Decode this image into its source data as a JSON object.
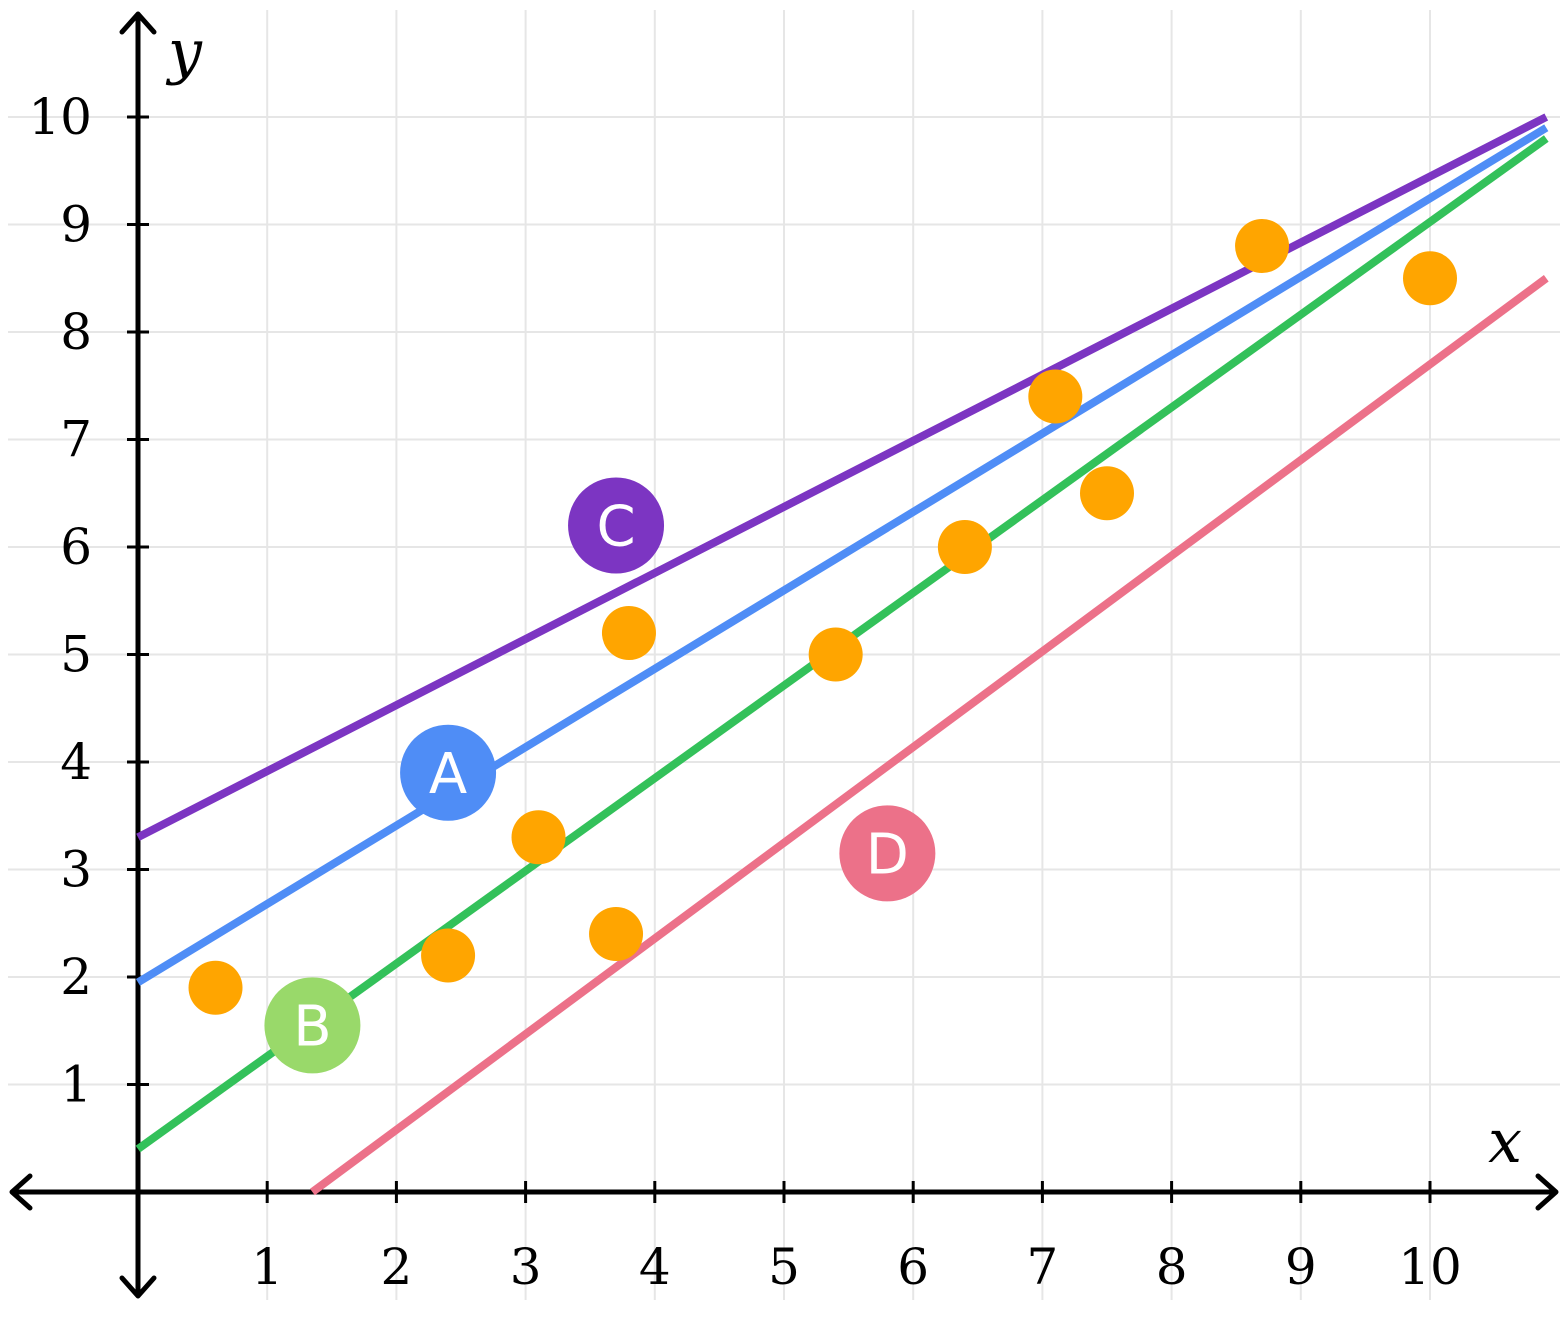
{
  "chart_data": {
    "type": "scatter",
    "title": "",
    "xlabel": "x",
    "ylabel": "y",
    "xlim": [
      -1,
      11
    ],
    "ylim": [
      -1,
      11
    ],
    "grid": true,
    "x_ticks": [
      "1",
      "2",
      "3",
      "4",
      "5",
      "6",
      "7",
      "8",
      "9",
      "10"
    ],
    "y_ticks": [
      "1",
      "2",
      "3",
      "4",
      "5",
      "6",
      "7",
      "8",
      "9",
      "10"
    ],
    "points": [
      {
        "x": 0.6,
        "y": 1.9
      },
      {
        "x": 2.4,
        "y": 2.2
      },
      {
        "x": 3.1,
        "y": 3.3
      },
      {
        "x": 3.7,
        "y": 2.4
      },
      {
        "x": 3.8,
        "y": 5.2
      },
      {
        "x": 5.4,
        "y": 5.0
      },
      {
        "x": 6.4,
        "y": 6.0
      },
      {
        "x": 7.1,
        "y": 7.4
      },
      {
        "x": 7.5,
        "y": 6.5
      },
      {
        "x": 8.7,
        "y": 8.8
      },
      {
        "x": 10.0,
        "y": 8.5
      }
    ],
    "point_color": "#FFA500",
    "lines": [
      {
        "name": "A",
        "color": "#4F8DF6",
        "x1": 0,
        "y1": 1.95,
        "x2": 10.9,
        "y2": 9.9
      },
      {
        "name": "B",
        "color": "#33C15A",
        "x1": 0,
        "y1": 0.4,
        "x2": 10.9,
        "y2": 9.8
      },
      {
        "name": "C",
        "color": "#7C35C2",
        "x1": 0,
        "y1": 3.3,
        "x2": 10.9,
        "y2": 10.0
      },
      {
        "name": "D",
        "color": "#EC7189",
        "x1": 1.35,
        "y1": 0,
        "x2": 10.9,
        "y2": 8.5
      }
    ],
    "line_labels": [
      {
        "text": "A",
        "x": 2.4,
        "y": 3.9,
        "color": "#4F8DF6"
      },
      {
        "text": "B",
        "x": 1.35,
        "y": 1.55,
        "color": "#99D96A"
      },
      {
        "text": "C",
        "x": 3.7,
        "y": 6.2,
        "color": "#7C35C2"
      },
      {
        "text": "D",
        "x": 5.8,
        "y": 3.15,
        "color": "#EC7189"
      }
    ]
  }
}
